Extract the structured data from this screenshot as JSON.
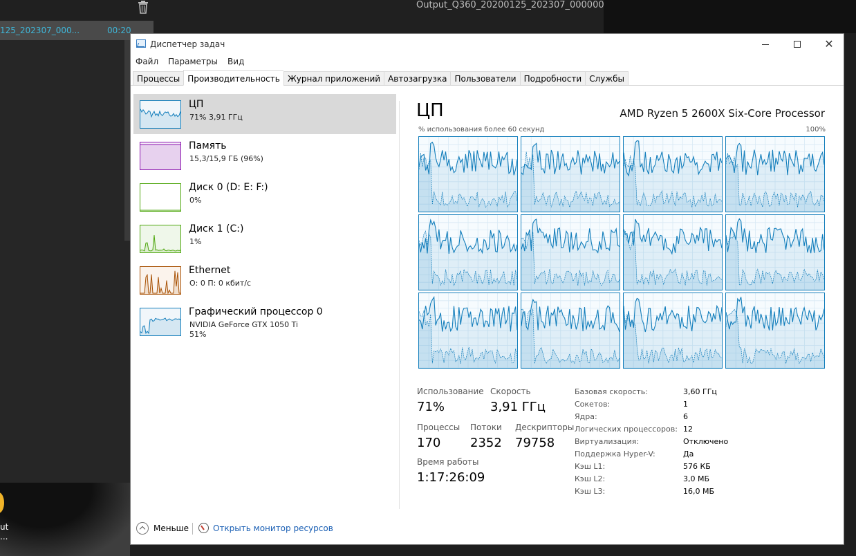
{
  "background_app": {
    "title": "Output_Q360_20200125_202307_000000",
    "selected_clip_name": "125_202307_000...",
    "selected_clip_time": "00:20",
    "overlay_text": "ut",
    "overlay_text2": "..."
  },
  "window": {
    "title": "Диспетчер задач"
  },
  "menu": [
    "Файл",
    "Параметры",
    "Вид"
  ],
  "tabs": [
    "Процессы",
    "Производительность",
    "Журнал приложений",
    "Автозагрузка",
    "Пользователи",
    "Подробности",
    "Службы"
  ],
  "active_tab": "Производительность",
  "sidebar": {
    "items": [
      {
        "name": "ЦП",
        "sub": "71%  3,91 ГГц",
        "color": "#117dbb",
        "fill": "#f1f6fa"
      },
      {
        "name": "Память",
        "sub": "15,3/15,9 ГБ (96%)",
        "color": "#8b12ae",
        "fill": "#f4ecf8"
      },
      {
        "name": "Диск 0 (D: E: F:)",
        "sub": "0%",
        "color": "#4da60c",
        "fill": "#ffffff"
      },
      {
        "name": "Диск 1 (C:)",
        "sub": "1%",
        "color": "#4da60c",
        "fill": "#eff7ea"
      },
      {
        "name": "Ethernet",
        "sub": "О: 0 П: 0 кбит/с",
        "color": "#a74f01",
        "fill": "#fbf3ec"
      },
      {
        "name": "Графический процессор 0",
        "sub": "NVIDIA GeForce GTX 1050 Ti",
        "sub2": "51%",
        "color": "#117dbb",
        "fill": "#f1f6fa"
      }
    ]
  },
  "main": {
    "title": "ЦП",
    "cpu_model": "AMD Ryzen 5 2600X Six-Core Processor",
    "graph_label": "% использования более 60 секунд",
    "graph_max": "100%",
    "graph_color": "#117dbb",
    "cores": 12,
    "stats": {
      "usage_label": "Использование",
      "usage_value": "71%",
      "speed_label": "Скорость",
      "speed_value": "3,91 ГГц",
      "processes_label": "Процессы",
      "processes_value": "170",
      "threads_label": "Потоки",
      "threads_value": "2352",
      "handles_label": "Дескрипторы",
      "handles_value": "79758",
      "uptime_label": "Время работы",
      "uptime_value": "1:17:26:09"
    },
    "specs": [
      {
        "label": "Базовая скорость:",
        "value": "3,60 ГГц"
      },
      {
        "label": "Сокетов:",
        "value": "1"
      },
      {
        "label": "Ядра:",
        "value": "6"
      },
      {
        "label": "Логических процессоров:",
        "value": "12"
      },
      {
        "label": "Виртуализация:",
        "value": "Отключено"
      },
      {
        "label": "Поддержка Hyper-V:",
        "value": "Да"
      },
      {
        "label": "Кэш L1:",
        "value": "576 КБ"
      },
      {
        "label": "Кэш L2:",
        "value": "3,0 МБ"
      },
      {
        "label": "Кэш L3:",
        "value": "16,0 МБ"
      }
    ]
  },
  "footer": {
    "less_label": "Меньше",
    "monitor_label": "Открыть монитор ресурсов"
  }
}
